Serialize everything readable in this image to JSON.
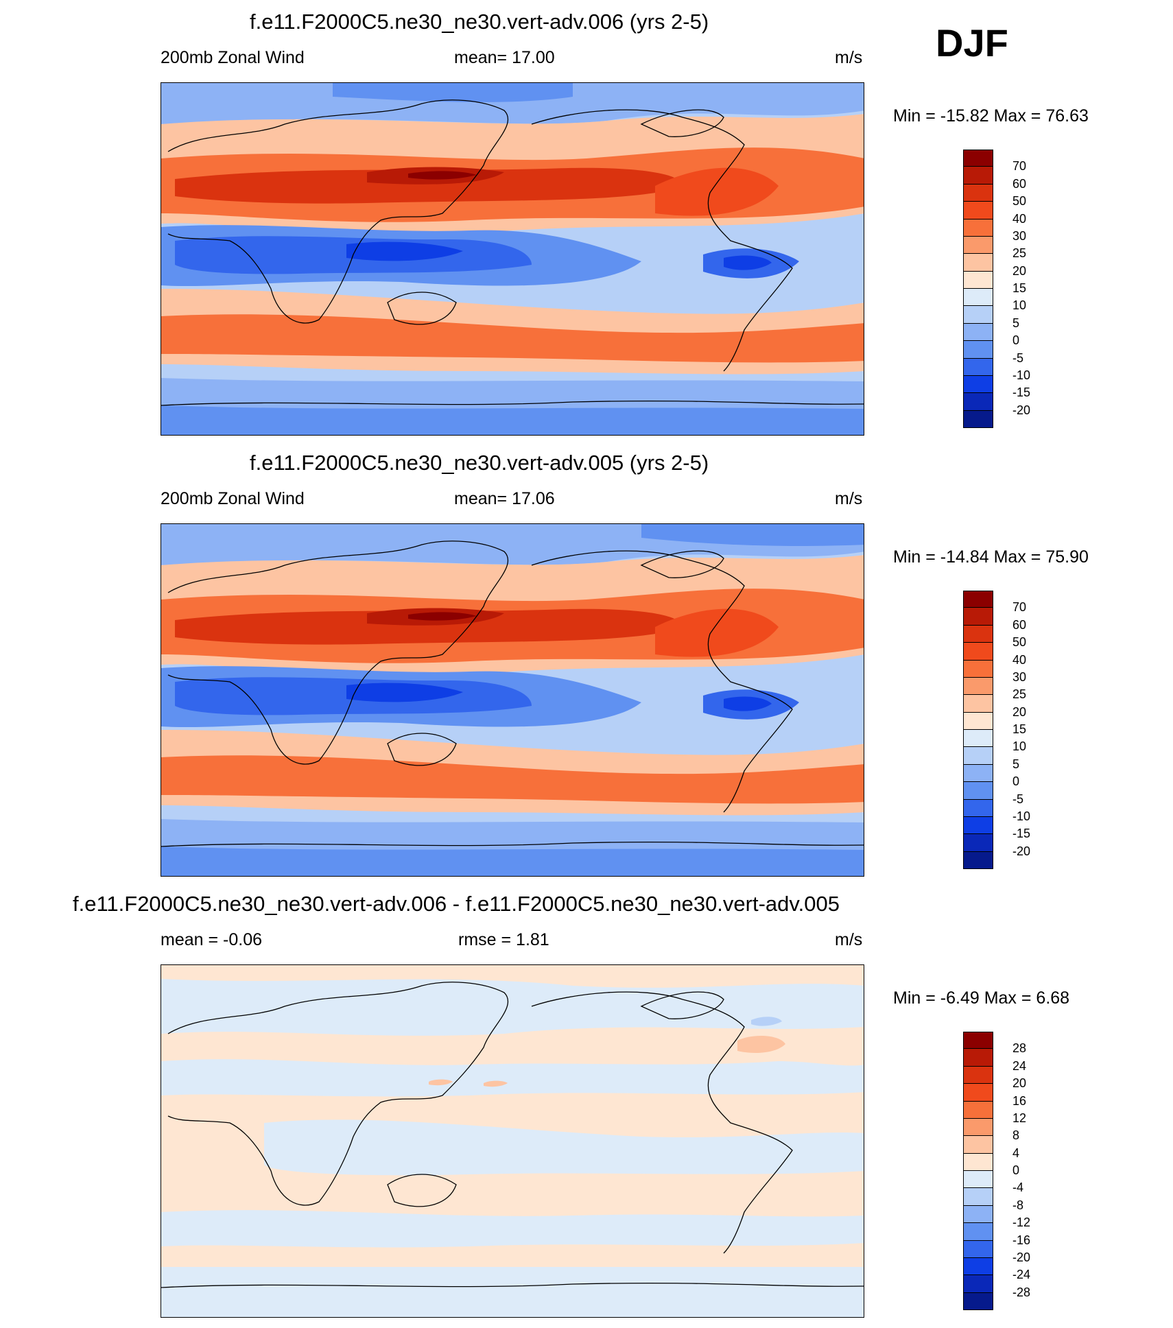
{
  "season": "DJF",
  "panels": [
    {
      "title": "f.e11.F2000C5.ne30_ne30.vert-adv.006 (yrs 2-5)",
      "left_label": "200mb Zonal Wind",
      "center_label": "mean=  17.00",
      "units": "m/s",
      "minmax": "Min = -15.82 Max =  76.63",
      "colorbar_labels": [
        "70",
        "60",
        "50",
        "40",
        "30",
        "25",
        "20",
        "15",
        "10",
        "5",
        "0",
        "-5",
        "-10",
        "-15",
        "-20"
      ],
      "colorbar_colors": [
        "#8b0000",
        "#b81a06",
        "#da330f",
        "#f04a1c",
        "#f7703a",
        "#fa9a6b",
        "#fdc4a2",
        "#fee6d2",
        "#ddebf9",
        "#b6d0f7",
        "#8db2f5",
        "#6091f1",
        "#3366ec",
        "#0e3ee5",
        "#0a28b8",
        "#061a8c"
      ]
    },
    {
      "title": "f.e11.F2000C5.ne30_ne30.vert-adv.005 (yrs 2-5)",
      "left_label": "200mb Zonal Wind",
      "center_label": "mean=  17.06",
      "units": "m/s",
      "minmax": "Min = -14.84 Max =  75.90",
      "colorbar_labels": [
        "70",
        "60",
        "50",
        "40",
        "30",
        "25",
        "20",
        "15",
        "10",
        "5",
        "0",
        "-5",
        "-10",
        "-15",
        "-20"
      ],
      "colorbar_colors": [
        "#8b0000",
        "#b81a06",
        "#da330f",
        "#f04a1c",
        "#f7703a",
        "#fa9a6b",
        "#fdc4a2",
        "#fee6d2",
        "#ddebf9",
        "#b6d0f7",
        "#8db2f5",
        "#6091f1",
        "#3366ec",
        "#0e3ee5",
        "#0a28b8",
        "#061a8c"
      ]
    },
    {
      "title": "f.e11.F2000C5.ne30_ne30.vert-adv.006 - f.e11.F2000C5.ne30_ne30.vert-adv.005",
      "left_label": "mean =  -0.06",
      "center_label": "rmse =   1.81",
      "units": "m/s",
      "minmax": "Min =  -6.49 Max =   6.68",
      "colorbar_labels": [
        "28",
        "24",
        "20",
        "16",
        "12",
        "8",
        "4",
        "0",
        "-4",
        "-8",
        "-12",
        "-16",
        "-20",
        "-24",
        "-28"
      ],
      "colorbar_colors": [
        "#8b0000",
        "#b81a06",
        "#da330f",
        "#f04a1c",
        "#f7703a",
        "#fa9a6b",
        "#fdc4a2",
        "#fee6d2",
        "#ddebf9",
        "#b6d0f7",
        "#8db2f5",
        "#6091f1",
        "#3366ec",
        "#0e3ee5",
        "#0a28b8",
        "#061a8c"
      ]
    }
  ]
}
